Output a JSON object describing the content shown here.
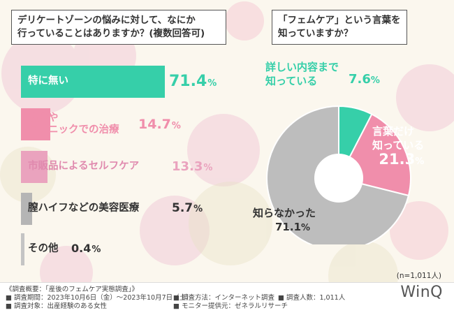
{
  "left_chart": {
    "title_line1": "デリケートゾーンの悩みに対して、なにか",
    "title_line2": "行っていることはありますか？(複数回答可)"
  },
  "right_chart": {
    "title_line1": "「フェムケア」という言葉を",
    "title_line2": "知っていますか？"
  },
  "chart_data": [
    {
      "type": "bar",
      "orientation": "horizontal",
      "title": "デリケートゾーンの悩みに対して、なにか行っていることはありますか？(複数回答可)",
      "categories": [
        "特に無い",
        "病院やクリニックでの治療",
        "市販品によるセルフケア",
        "膣ハイフなどの美容医療",
        "その他"
      ],
      "label_lines": [
        [
          "特に無い"
        ],
        [
          "病院や",
          "クリニックでの治療"
        ],
        [
          "市販品によるセルフケア"
        ],
        [
          "膣ハイフなどの美容医療"
        ],
        [
          "その他"
        ]
      ],
      "values": [
        71.4,
        14.7,
        13.3,
        5.7,
        0.4
      ],
      "value_labels": [
        "71.4",
        "14.7",
        "13.3",
        "5.7",
        "0.4"
      ],
      "unit": "%",
      "colors": [
        "#36cfa9",
        "#f08eab",
        "#eaa3be",
        "#b5b5b5",
        "#c4c4c4"
      ]
    },
    {
      "type": "pie",
      "style": "donut",
      "title": "「フェムケア」という言葉を知っていますか？",
      "categories": [
        "詳しい内容まで知っている",
        "言葉だけ知っている",
        "知らなかった"
      ],
      "label_lines": [
        [
          "詳しい内容まで",
          "知っている"
        ],
        [
          "言葉だけ",
          "知っている"
        ],
        [
          "知らなかった"
        ]
      ],
      "values": [
        7.6,
        21.3,
        71.1
      ],
      "value_labels": [
        "7.6",
        "21.3",
        "71.1"
      ],
      "unit": "%",
      "colors": [
        "#36cfa9",
        "#f08eab",
        "#bdbdbd"
      ],
      "label_colors": [
        "#36cfa9",
        "#ffffff",
        "#333333"
      ]
    }
  ],
  "note": "(n=1,011人)",
  "footer": {
    "overview": "《調査概要：「産後のフェムケア実態調査」》",
    "period": "■ 調査期間：2023年10月6日（金）〜2023年10月7日（土）",
    "method": "■ 調査方法：インターネット調査",
    "count": "■ 調査人数：1,011人",
    "target": "■ 調査対象：出産経験のある女性",
    "monitor": "■ モニター提供元：ゼネラルリサーチ"
  },
  "logo": "WinQ"
}
